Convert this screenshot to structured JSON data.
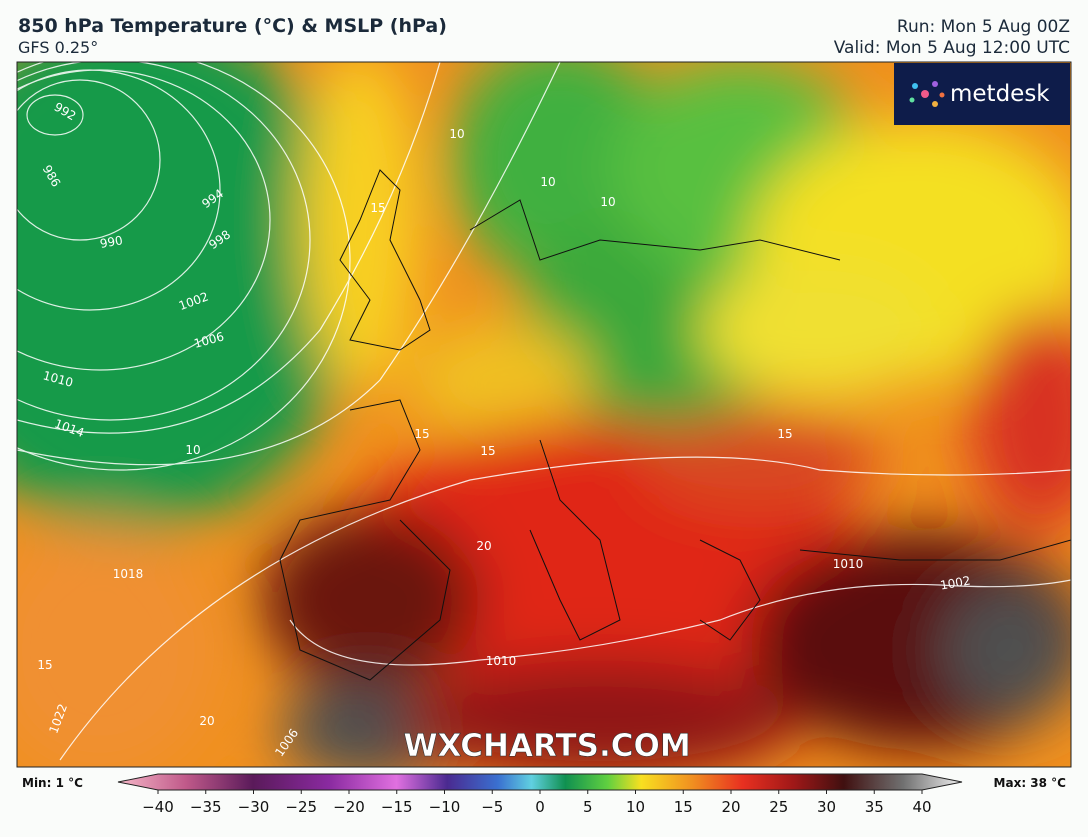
{
  "header": {
    "title": "850 hPa Temperature (°C) & MSLP (hPa)",
    "subtitle": "GFS 0.25°",
    "run": "Run: Mon 5 Aug 00Z",
    "valid": "Valid: Mon 5 Aug 12:00 UTC"
  },
  "logo": "metdesk",
  "watermark": "WXCHARTS.COM",
  "contour_labels": [
    "992",
    "986",
    "990",
    "994",
    "998",
    "1002",
    "1006",
    "1010",
    "1014",
    "10",
    "15",
    "10",
    "10",
    "15",
    "15",
    "20",
    "1018",
    "15",
    "1022",
    "20",
    "1010",
    "1006",
    "1002",
    "1010",
    "15",
    "10"
  ],
  "colorbar": {
    "min_label": "Min: 1 °C",
    "max_label": "Max: 38 °C",
    "ticks": [
      {
        "value": -40,
        "label": "−40"
      },
      {
        "value": -35,
        "label": "−35"
      },
      {
        "value": -30,
        "label": "−30"
      },
      {
        "value": -25,
        "label": "−25"
      },
      {
        "value": -20,
        "label": "−20"
      },
      {
        "value": -15,
        "label": "−15"
      },
      {
        "value": -10,
        "label": "−10"
      },
      {
        "value": -5,
        "label": "−5"
      },
      0,
      5,
      10,
      15,
      20,
      25,
      30,
      35,
      40
    ]
  }
}
